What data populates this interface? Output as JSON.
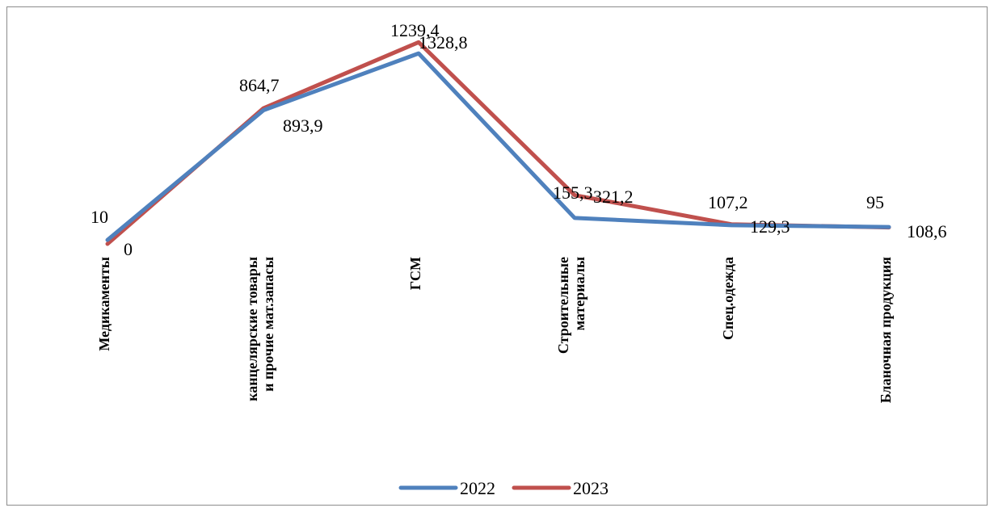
{
  "chart_data": {
    "type": "line",
    "categories": [
      [
        "Медикаменты"
      ],
      [
        "канцелярские товары",
        "и прочие мат.запасы"
      ],
      [
        "ГСМ"
      ],
      [
        "Строительные",
        "материалы"
      ],
      [
        "Спец.одежда"
      ],
      [
        "Бланочная продукция"
      ]
    ],
    "series": [
      {
        "name": "2022",
        "values": [
          10,
          864.7,
          1239.4,
          155.3,
          107.2,
          95
        ],
        "labels": [
          "10",
          "864,7",
          "1239,4",
          "155,3",
          "107,2",
          "95"
        ],
        "color": "#4f81bd"
      },
      {
        "name": "2023",
        "values": [
          0,
          893.9,
          1328.8,
          321.2,
          129.3,
          108.6
        ],
        "labels": [
          "0",
          "893,9",
          "1328,8",
          "321,2",
          "129,3",
          "108,6"
        ],
        "color": "#c0504d"
      }
    ],
    "legend_position": "bottom",
    "grid": false,
    "title": "",
    "xlabel": "",
    "ylabel": ""
  }
}
